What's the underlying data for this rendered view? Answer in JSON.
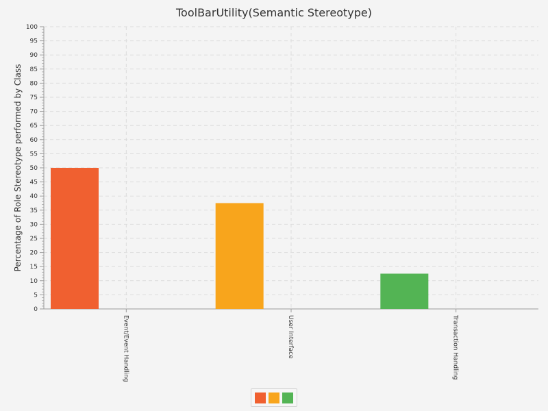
{
  "chart_data": {
    "type": "bar",
    "title": "ToolBarUtility(Semantic Stereotype)",
    "xlabel": "",
    "ylabel": "Percentage of Role Stereotype performed by Class",
    "ylim": [
      0,
      100
    ],
    "y_major_step": 5,
    "y_minor_step": 1,
    "grid": true,
    "legend_position": "bottom-center",
    "categories": [
      "Event/Event Handling",
      "User Interface",
      "Transaction Handling"
    ],
    "values": [
      50,
      37.5,
      12.5
    ],
    "colors": [
      "#f06030",
      "#f8a51c",
      "#53b454"
    ],
    "legend_swatches": [
      "#f06030",
      "#f8a51c",
      "#53b454"
    ]
  }
}
